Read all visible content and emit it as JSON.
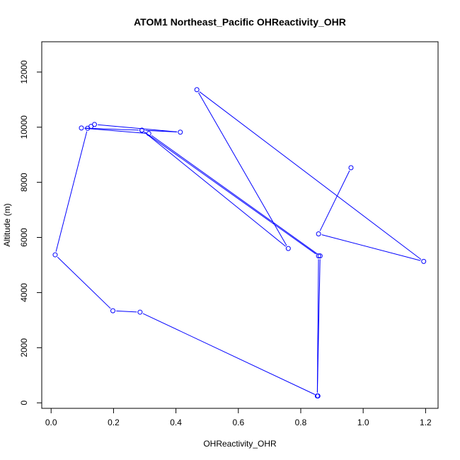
{
  "chart_data": {
    "type": "line",
    "title": "ATOM1 Northeast_Pacific OHReactivity_OHR",
    "xlabel": "OHReactivity_OHR",
    "ylabel": "Altitude (m)",
    "xlim": [
      -0.03,
      1.24
    ],
    "ylim": [
      -200,
      13100
    ],
    "x_ticks": [
      0,
      0.2,
      0.4,
      0.6,
      0.8,
      1.0,
      1.2
    ],
    "x_tick_labels": [
      "0.0",
      "0.2",
      "0.4",
      "0.6",
      "0.8",
      "1.0",
      "1.2"
    ],
    "y_ticks": [
      0,
      2000,
      4000,
      6000,
      8000,
      10000,
      12000
    ],
    "y_tick_labels": [
      "0",
      "2000",
      "4000",
      "6000",
      "8000",
      "10000",
      "12000"
    ],
    "grid": false,
    "marker": "open-circle",
    "series": [
      {
        "color": "#0000ff",
        "points": [
          {
            "x": 0.855,
            "y": 250
          },
          {
            "x": 0.285,
            "y": 3290
          },
          {
            "x": 0.198,
            "y": 3340
          },
          {
            "x": 0.013,
            "y": 5370
          },
          {
            "x": 0.117,
            "y": 9960
          },
          {
            "x": 0.128,
            "y": 10030
          },
          {
            "x": 0.139,
            "y": 10100
          },
          {
            "x": 0.414,
            "y": 9820
          },
          {
            "x": 0.291,
            "y": 9890
          },
          {
            "x": 0.097,
            "y": 9970
          },
          {
            "x": 0.313,
            "y": 9770
          },
          {
            "x": 0.862,
            "y": 5330
          },
          {
            "x": 0.853,
            "y": 250
          },
          {
            "x": 0.857,
            "y": 5330
          },
          {
            "x": 0.291,
            "y": 9890
          },
          {
            "x": 0.76,
            "y": 5600
          },
          {
            "x": 0.467,
            "y": 11360
          },
          {
            "x": 1.194,
            "y": 5130
          },
          {
            "x": 0.857,
            "y": 6130
          },
          {
            "x": 0.961,
            "y": 8530
          }
        ]
      }
    ]
  }
}
